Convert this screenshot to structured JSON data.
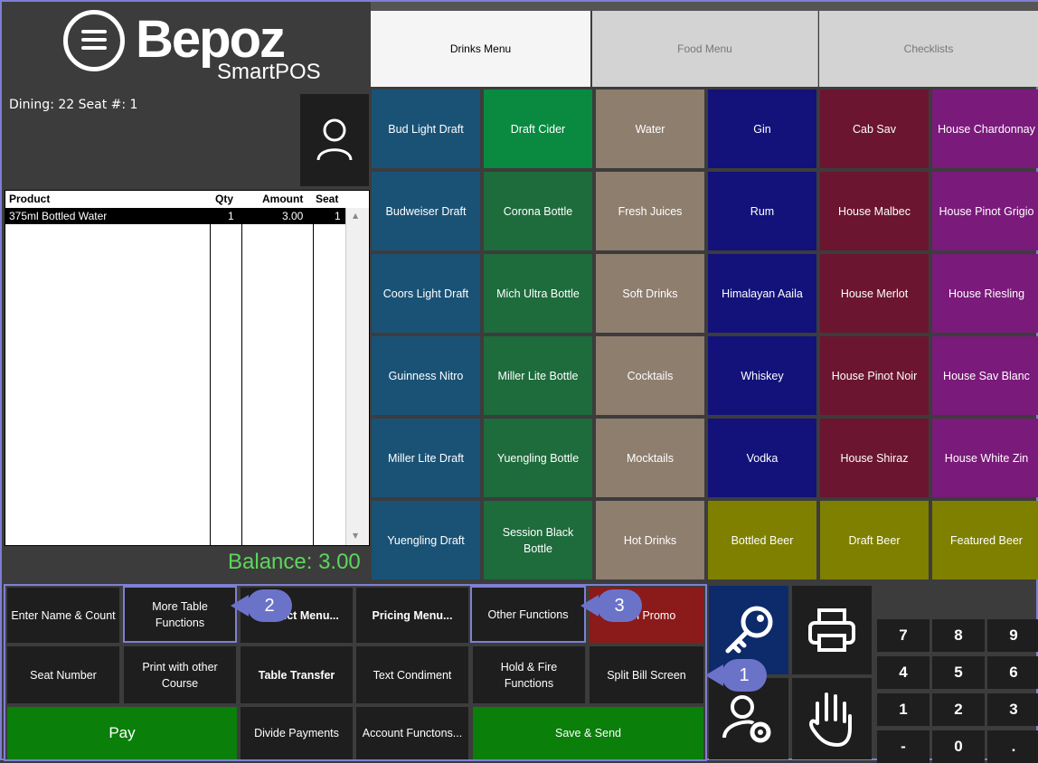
{
  "logo": {
    "name": "Bepoz",
    "sub": "SmartPOS"
  },
  "table_info": "Dining: 22  Seat #: 1",
  "order": {
    "headers": {
      "product": "Product",
      "qty": "Qty",
      "amount": "Amount",
      "seat": "Seat"
    },
    "rows": [
      {
        "product": "375ml Bottled Water",
        "qty": "1",
        "amount": "3.00",
        "seat": "1"
      }
    ],
    "balance": "Balance: 3.00"
  },
  "tabs": [
    {
      "label": "Drinks Menu",
      "active": true
    },
    {
      "label": "Food Menu",
      "active": false
    },
    {
      "label": "Checklists",
      "active": false
    }
  ],
  "menu": [
    [
      "Bud Light Draft",
      "Draft Cider",
      "Water",
      "Gin",
      "Cab Sav",
      "House Chardonnay"
    ],
    [
      "Budweiser Draft",
      "Corona Bottle",
      "Fresh Juices",
      "Rum",
      "House Malbec",
      "House Pinot Grigio"
    ],
    [
      "Coors Light Draft",
      "Mich Ultra Bottle",
      "Soft Drinks",
      "Himalayan Aaila",
      "House Merlot",
      "House Riesling"
    ],
    [
      "Guinness Nitro",
      "Miller Lite Bottle",
      "Cocktails",
      "Whiskey",
      "House Pinot Noir",
      "House Sav Blanc"
    ],
    [
      "Miller Lite Draft",
      "Yuengling Bottle",
      "Mocktails",
      "Vodka",
      "House Shiraz",
      "House White Zin"
    ],
    [
      "Yuengling Draft",
      "Session Black Bottle",
      "Hot Drinks",
      "Bottled Beer",
      "Draft Beer",
      "Featured Beer"
    ]
  ],
  "colors": {
    "col0": "#1a5276",
    "col1": "#1e6b3c",
    "col2": "#8e7e6e",
    "col3": "#12127a",
    "col4": "#6b1530",
    "col5": "#7a1a7a",
    "draft_cider": "#0a8a40",
    "water": "#8e7e6e",
    "olive": "#7f7f00",
    "accent": "#7f7fd4",
    "balance": "#5cd65c"
  },
  "functions": {
    "enter_name": "Enter Name & Count",
    "more_table": "More Table Functions",
    "product_menu": "Product Menu...",
    "pricing_menu": "Pricing Menu...",
    "other_functions": "Other Functions",
    "item_promo": "Item Promo",
    "seat_number": "Seat Number",
    "print_course": "Print with other Course",
    "table_transfer": "Table Transfer",
    "text_condiment": "Text Condiment",
    "hold_fire": "Hold & Fire Functions",
    "split_bill": "Split Bill Screen",
    "pay": "Pay",
    "divide_payments": "Divide Payments",
    "account_functions": "Account Functons...",
    "save_send": "Save & Send"
  },
  "keypad": [
    "7",
    "8",
    "9",
    "4",
    "5",
    "6",
    "1",
    "2",
    "3",
    "-",
    "0",
    "."
  ],
  "callouts": [
    "1",
    "2",
    "3"
  ]
}
